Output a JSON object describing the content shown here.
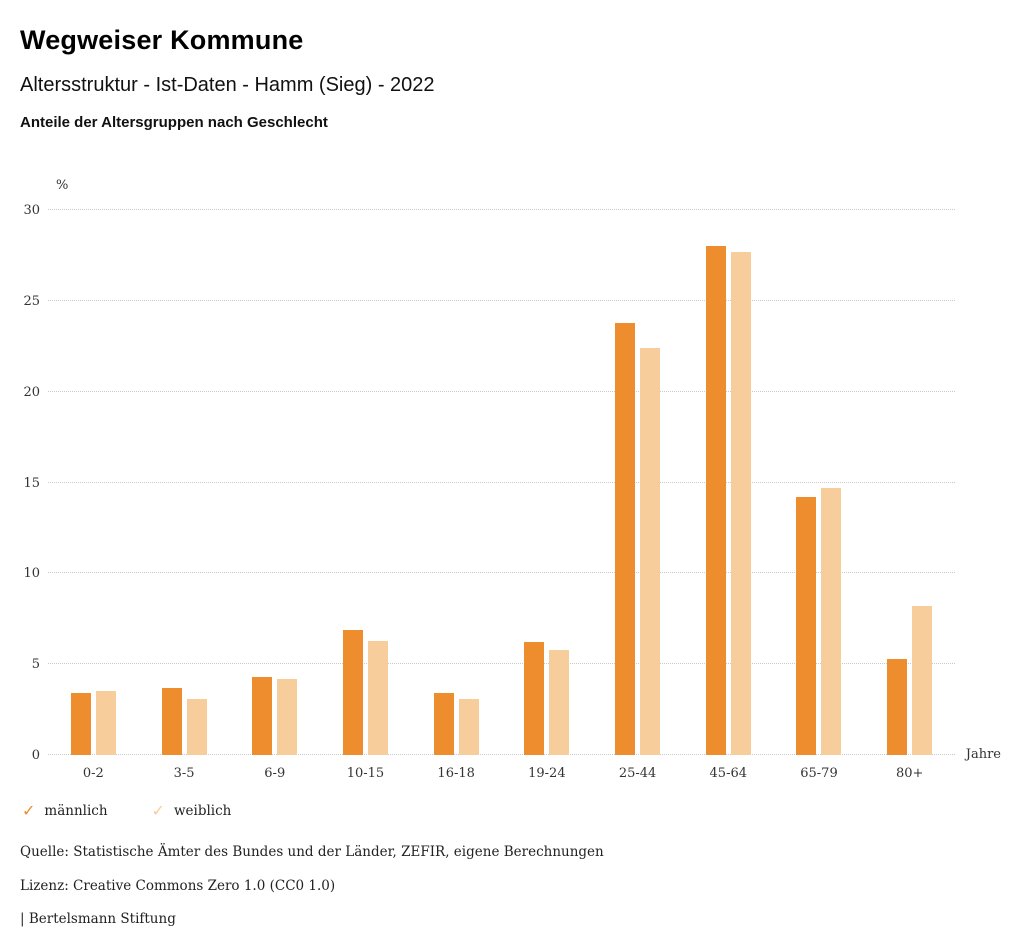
{
  "header": {
    "title": "Wegweiser Kommune",
    "subtitle": "Altersstruktur - Ist-Daten - Hamm (Sieg) - 2022",
    "subsubtitle": "Anteile der Altersgruppen nach Geschlecht"
  },
  "chart_data": {
    "type": "bar",
    "title": "Anteile der Altersgruppen nach Geschlecht",
    "categories": [
      "0-2",
      "3-5",
      "6-9",
      "10-15",
      "16-18",
      "19-24",
      "25-44",
      "45-64",
      "65-79",
      "80+"
    ],
    "series": [
      {
        "name": "männlich",
        "color": "#ED8D2E",
        "values": [
          3.4,
          3.7,
          4.3,
          6.9,
          3.4,
          6.2,
          23.8,
          28.0,
          14.2,
          5.3
        ]
      },
      {
        "name": "weiblich",
        "color": "#F7CD9C",
        "values": [
          3.5,
          3.1,
          4.2,
          6.3,
          3.1,
          5.8,
          22.4,
          27.7,
          14.7,
          8.2
        ]
      }
    ],
    "xlabel": "Jahre",
    "ylabel": "%",
    "ylim": [
      0,
      30
    ],
    "yticks": [
      0,
      5,
      10,
      15,
      20,
      25,
      30
    ],
    "grid": "horizontal-dotted",
    "legend_position": "bottom-left",
    "legend_marker": "checkmark"
  },
  "footer": {
    "source": "Quelle: Statistische Ämter des Bundes und der Länder, ZEFIR, eigene Berechnungen",
    "license": "Lizenz: Creative Commons Zero 1.0 (CC0 1.0)",
    "attribution": "| Bertelsmann Stiftung"
  }
}
